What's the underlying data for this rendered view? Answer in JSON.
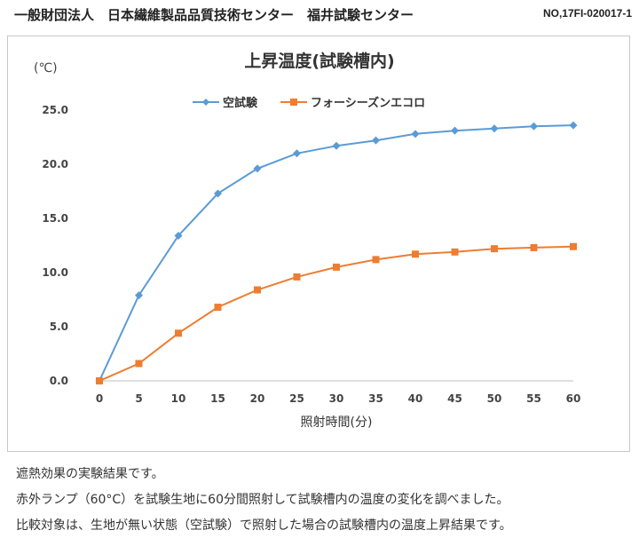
{
  "header": {
    "organization": "一般財団法人　日本繊維製品品質技術センター　福井試験センター",
    "doc_number": "NO,17FI-020017-1"
  },
  "chart_data": {
    "type": "line",
    "title": "上昇温度(試験槽内)",
    "ylabel": "(℃)",
    "xlabel": "照射時間(分)",
    "x": [
      0,
      5,
      10,
      15,
      20,
      25,
      30,
      35,
      40,
      45,
      50,
      55,
      60
    ],
    "ylim": [
      0,
      25
    ],
    "yticks": [
      "0.0",
      "5.0",
      "10.0",
      "15.0",
      "20.0",
      "25.0"
    ],
    "xticks": [
      "0",
      "5",
      "10",
      "15",
      "20",
      "25",
      "30",
      "35",
      "40",
      "45",
      "50",
      "55",
      "60"
    ],
    "grid": false,
    "legend_position": "top",
    "series": [
      {
        "name": "空試験",
        "color": "#5b9bd5",
        "marker": "diamond",
        "values": [
          0.0,
          7.9,
          13.4,
          17.3,
          19.6,
          21.0,
          21.7,
          22.2,
          22.8,
          23.1,
          23.3,
          23.5,
          23.6
        ]
      },
      {
        "name": "フォーシーズンエコロ",
        "color": "#ed7d31",
        "marker": "square",
        "values": [
          0.0,
          1.6,
          4.4,
          6.8,
          8.4,
          9.6,
          10.5,
          11.2,
          11.7,
          11.9,
          12.2,
          12.3,
          12.4
        ]
      }
    ]
  },
  "caption": {
    "line1": "遮熱効果の実験結果です。",
    "line2": "赤外ランプ（60°C）を試験生地に60分間照射して試験槽内の温度の変化を調べました。",
    "line3": "比較対象は、生地が無い状態（空試験）で照射した場合の試験槽内の温度上昇結果です。"
  }
}
